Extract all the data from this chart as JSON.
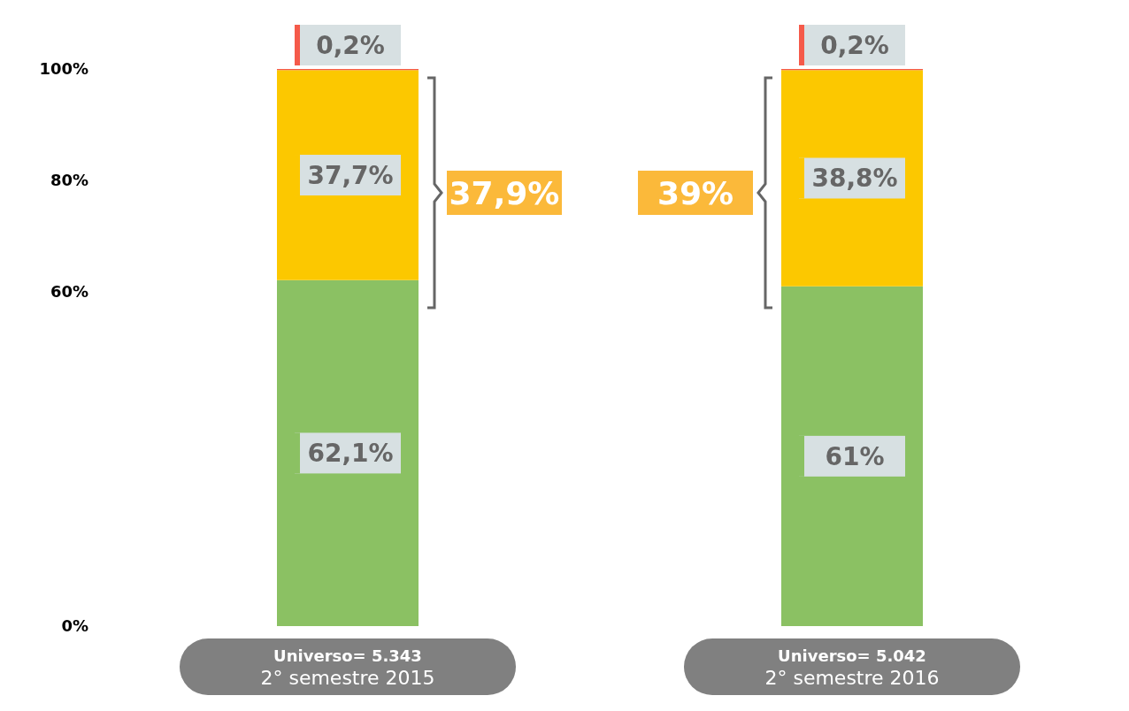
{
  "chart_data": {
    "type": "bar",
    "stacked": true,
    "categories": [
      "Universo= 5.343\n2° semestre 2015",
      "Universo= 5.042\n2° semestre 2016"
    ],
    "series": [
      {
        "color": "#8bc163",
        "values": [
          62.1,
          61
        ],
        "value_labels": [
          "62,1%",
          "61%"
        ]
      },
      {
        "color": "#fcc800",
        "values": [
          37.7,
          38.8
        ],
        "value_labels": [
          "37,7%",
          "38,8%"
        ]
      },
      {
        "color": "#f55a4a",
        "values": [
          0.2,
          0.2
        ],
        "value_labels": [
          "0,2%",
          "0,2%"
        ]
      }
    ],
    "ylim": [
      0,
      100
    ],
    "yticks": [
      {
        "value": 0,
        "label": "0%"
      },
      {
        "value": 60,
        "label": "60%"
      },
      {
        "value": 80,
        "label": "80%"
      },
      {
        "value": 100,
        "label": "100%"
      }
    ],
    "annotations": [
      "37,9%",
      "39%"
    ],
    "grid": false,
    "legend": false
  }
}
